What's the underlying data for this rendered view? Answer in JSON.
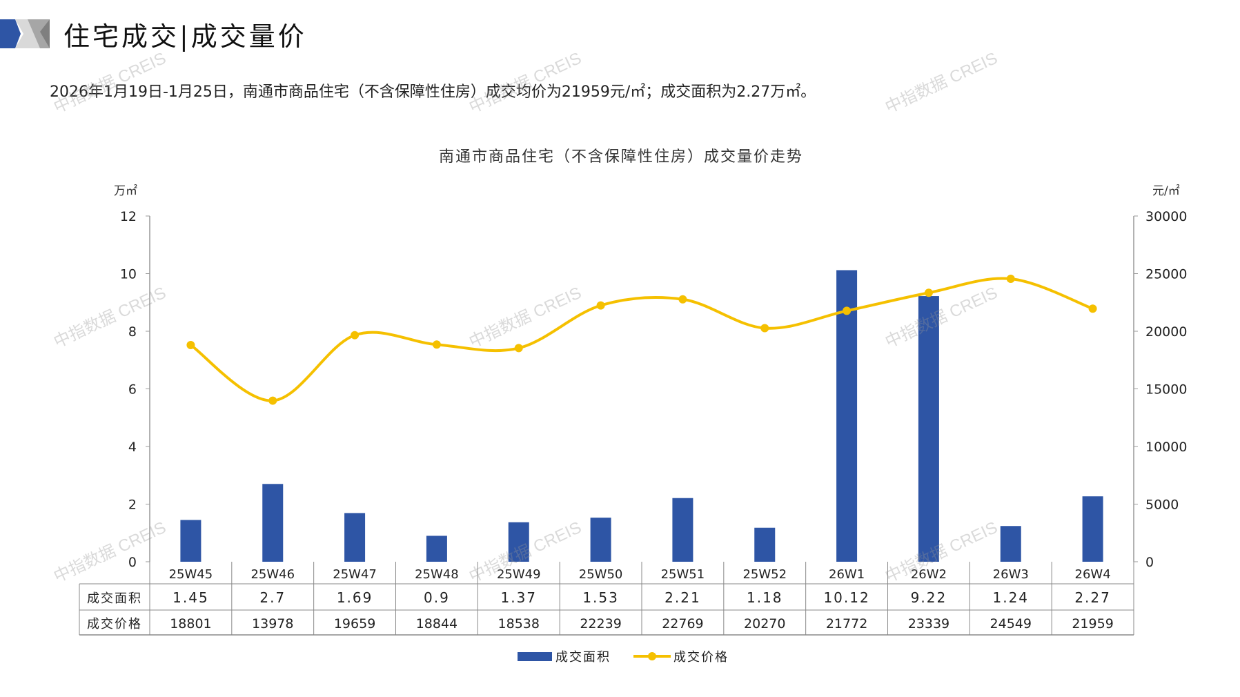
{
  "header": {
    "title": "住宅成交|成交量价",
    "subtitle": "2026年1月19日-1月25日，南通市商品住宅（不含保障性住房）成交均价为21959元/㎡；成交面积为2.27万㎡。"
  },
  "watermark": "中指数据 CREIS",
  "colors": {
    "bar": "#2E55A5",
    "line": "#F5C000",
    "accent": "#2E55A5"
  },
  "chart_data": {
    "type": "bar+line",
    "title": "南通市商品住宅（不含保障性住房）成交量价走势",
    "ylabel_left": "万㎡",
    "ylabel_right": "元/㎡",
    "ylim_left": [
      0,
      12
    ],
    "yticks_left": [
      "0",
      "2",
      "4",
      "6",
      "8",
      "10",
      "12"
    ],
    "ylim_right": [
      0,
      30000
    ],
    "yticks_right": [
      "0",
      "5000",
      "10000",
      "15000",
      "20000",
      "25000",
      "30000"
    ],
    "categories": [
      "25W45",
      "25W46",
      "25W47",
      "25W48",
      "25W49",
      "25W50",
      "25W51",
      "25W52",
      "26W1",
      "26W2",
      "26W3",
      "26W4"
    ],
    "series": [
      {
        "name": "成交面积",
        "type": "bar",
        "axis": "left",
        "values": [
          1.45,
          2.7,
          1.69,
          0.9,
          1.37,
          1.53,
          2.21,
          1.18,
          10.12,
          9.22,
          1.24,
          2.27
        ],
        "labels": [
          "1.45",
          "2.7",
          "1.69",
          "0.9",
          "1.37",
          "1.53",
          "2.21",
          "1.18",
          "10.12",
          "9.22",
          "1.24",
          "2.27"
        ]
      },
      {
        "name": "成交价格",
        "type": "line",
        "axis": "right",
        "values": [
          18801,
          13978,
          19659,
          18844,
          18538,
          22239,
          22769,
          20270,
          21772,
          23339,
          24549,
          21959
        ]
      }
    ],
    "legend": "bottom"
  }
}
